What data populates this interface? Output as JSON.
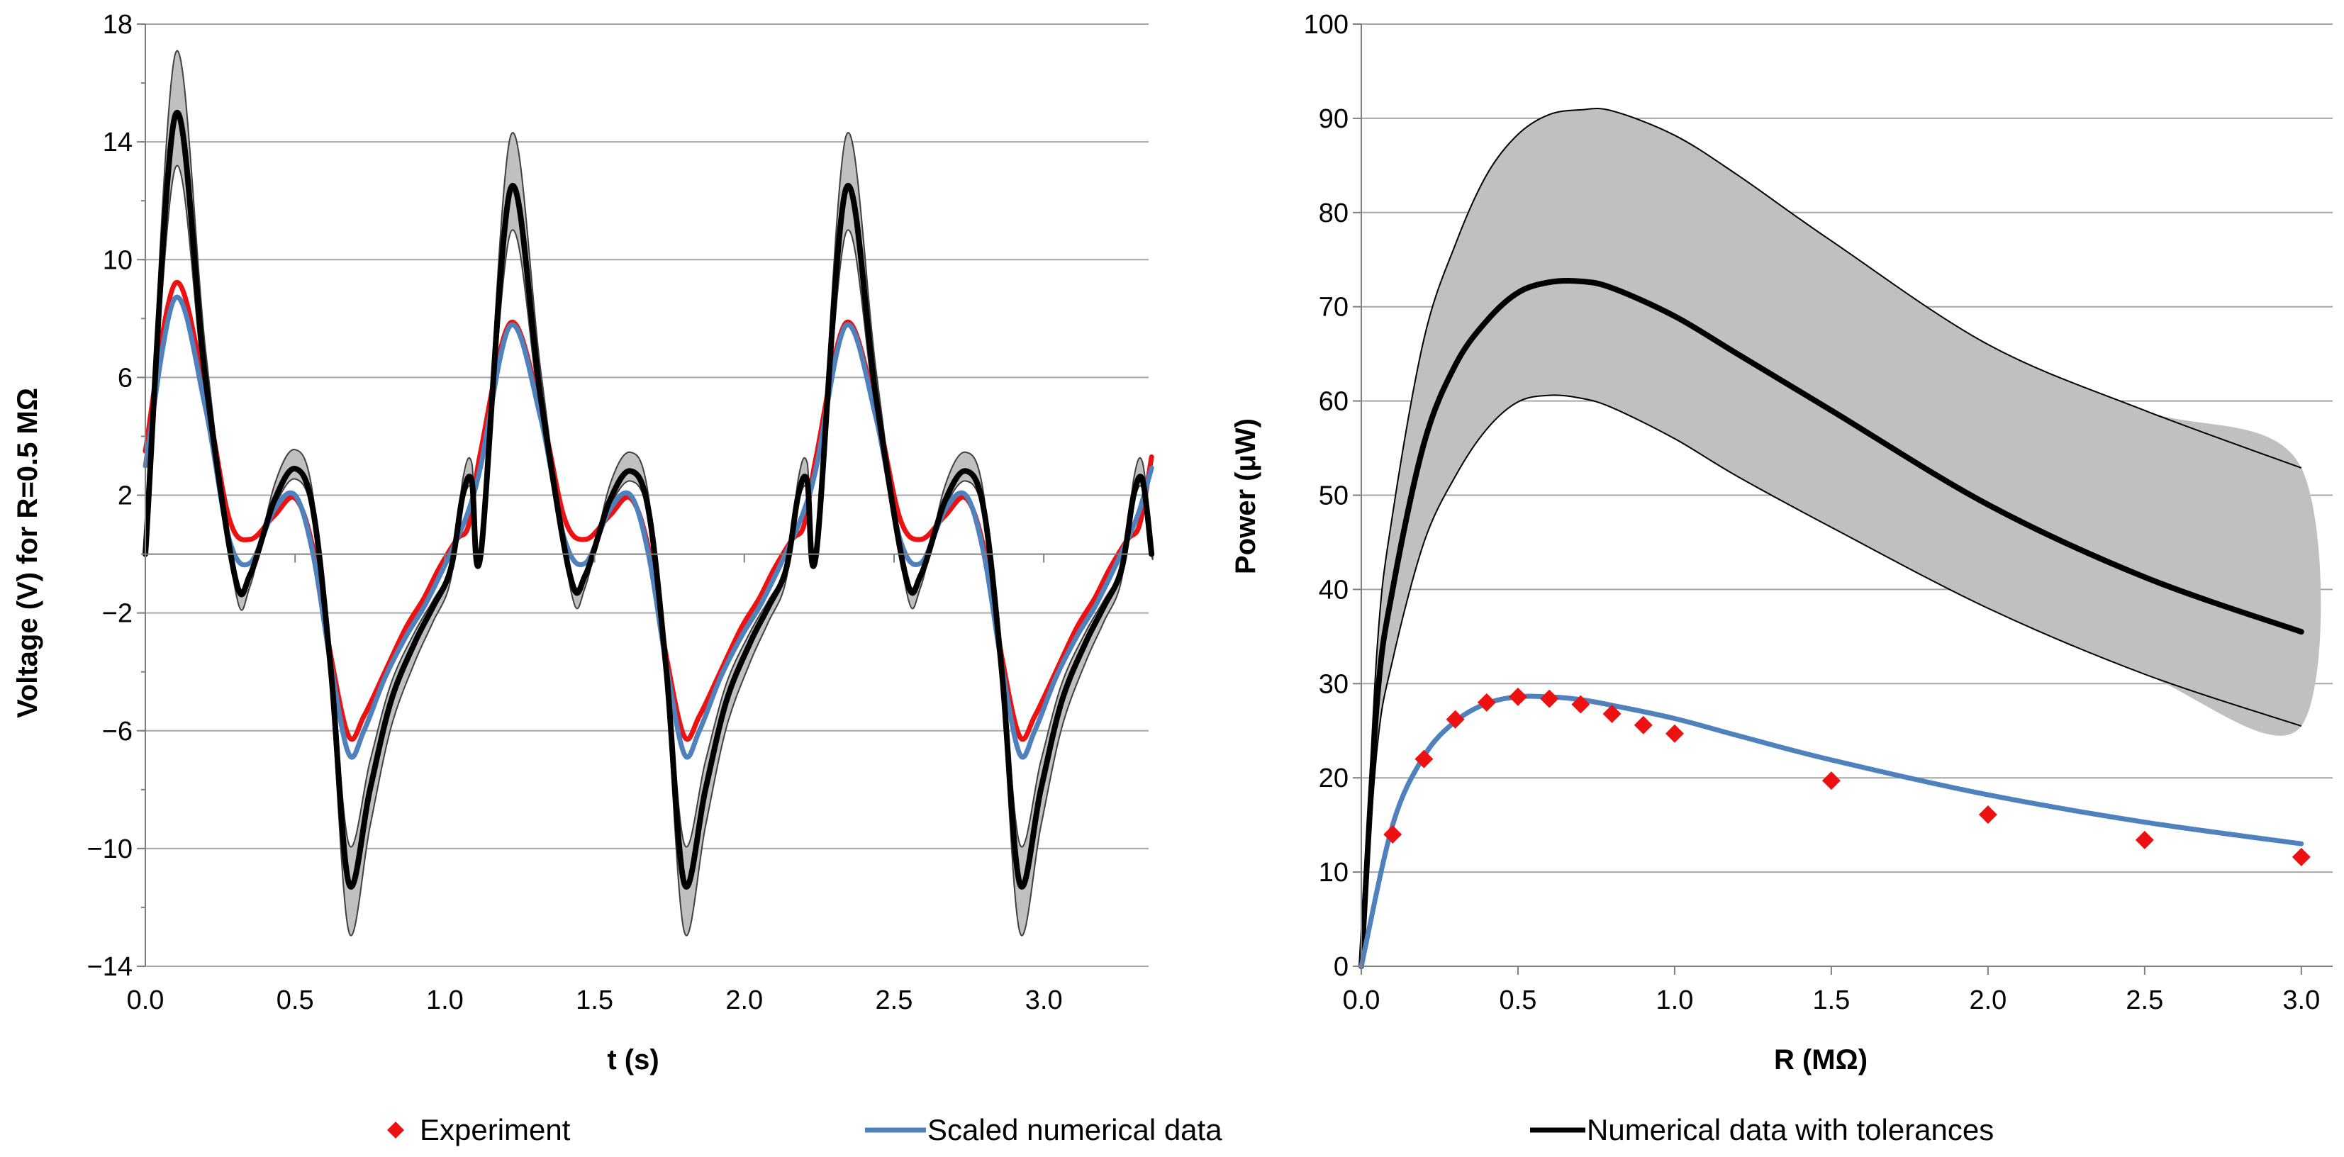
{
  "chart_data": [
    {
      "type": "line",
      "xlabel": "t (s)",
      "ylabel": "Voltage (V) for  R=0.5 MΩ",
      "xlim": [
        0,
        3.35
      ],
      "ylim": [
        -14,
        18
      ],
      "xticks": [
        0.0,
        0.5,
        1.0,
        1.5,
        2.0,
        2.5,
        3.0
      ],
      "xtick_labels": [
        "0.0",
        "0.5",
        "1.0",
        "1.5",
        "2.0",
        "2.5",
        "3.0"
      ],
      "yticks": [
        -14,
        -10,
        -6,
        -2,
        2,
        6,
        10,
        14,
        18
      ],
      "ytick_labels": [
        "−14",
        "−10",
        "−6",
        "−2",
        "2",
        "6",
        "10",
        "14",
        "18"
      ],
      "grid": true,
      "period_s": 1.12,
      "series": [
        {
          "name": "Experiment",
          "style": "line",
          "color": "#ee1111",
          "phase_t": [
            0.0,
            0.1,
            0.2,
            0.28,
            0.35,
            0.43,
            0.5,
            0.56,
            0.62,
            0.68,
            0.73,
            0.8,
            0.87,
            0.93,
            0.98,
            1.04,
            1.08,
            1.12
          ],
          "phase_v": [
            3.5,
            9.2,
            5.5,
            1.2,
            0.5,
            1.3,
            1.9,
            0.2,
            -3.5,
            -6.2,
            -5.5,
            -4.0,
            -2.5,
            -1.5,
            -0.5,
            0.5,
            1.0,
            3.5
          ],
          "peak_scale": [
            1.0,
            0.8,
            0.8
          ]
        },
        {
          "name": "Scaled numerical data",
          "style": "line",
          "color": "#4f81bd",
          "phase_t": [
            0.0,
            0.1,
            0.2,
            0.28,
            0.35,
            0.43,
            0.5,
            0.56,
            0.62,
            0.68,
            0.73,
            0.8,
            0.87,
            0.93,
            0.98,
            1.04,
            1.08,
            1.12
          ],
          "phase_v": [
            3.0,
            8.7,
            5.0,
            0.5,
            -0.3,
            1.5,
            2.0,
            0.0,
            -3.8,
            -6.8,
            -6.0,
            -4.2,
            -2.8,
            -1.8,
            -0.8,
            0.5,
            1.5,
            3.0
          ],
          "peak_scale": [
            1.0,
            0.85,
            0.85
          ]
        },
        {
          "name": "Numerical data with tolerances",
          "style": "line",
          "color": "#000000",
          "band_color": "#c0c0c0",
          "tolerance_fraction": 0.12,
          "phase_t": [
            0.0,
            0.1,
            0.2,
            0.3,
            0.35,
            0.43,
            0.5,
            0.56,
            0.62,
            0.68,
            0.75,
            0.82,
            0.9,
            0.96,
            1.02,
            1.06,
            1.09,
            1.12
          ],
          "phase_v": [
            0.0,
            14.9,
            6.0,
            -0.8,
            -0.7,
            1.8,
            2.9,
            1.5,
            -4.0,
            -11.2,
            -8.0,
            -5.0,
            -3.0,
            -1.8,
            -0.5,
            2.0,
            2.5,
            0.0
          ],
          "peak_scale": [
            1.0,
            0.8,
            0.8
          ]
        }
      ]
    },
    {
      "type": "line",
      "xlabel": "R (MΩ)",
      "ylabel": "Power (μW)",
      "xlim": [
        0,
        3.1
      ],
      "ylim": [
        0,
        100
      ],
      "xticks": [
        0.0,
        0.5,
        1.0,
        1.5,
        2.0,
        2.5,
        3.0
      ],
      "xtick_labels": [
        "0.0",
        "0.5",
        "1.0",
        "1.5",
        "2.0",
        "2.5",
        "3.0"
      ],
      "yticks": [
        0,
        10,
        20,
        30,
        40,
        50,
        60,
        70,
        80,
        90,
        100
      ],
      "ytick_labels": [
        "0",
        "10",
        "20",
        "30",
        "40",
        "50",
        "60",
        "70",
        "80",
        "90",
        "100"
      ],
      "grid": true,
      "series": [
        {
          "name": "Experiment",
          "style": "markers",
          "color": "#ee1111",
          "x": [
            0.1,
            0.2,
            0.3,
            0.4,
            0.5,
            0.6,
            0.7,
            0.8,
            0.9,
            1.0,
            1.5,
            2.0,
            2.5,
            3.0
          ],
          "y": [
            14,
            22,
            26.2,
            28.0,
            28.6,
            28.4,
            27.8,
            26.8,
            25.6,
            24.7,
            19.7,
            16.1,
            13.4,
            11.6
          ]
        },
        {
          "name": "Scaled numerical data",
          "style": "line",
          "color": "#4f81bd",
          "x": [
            0.0,
            0.1,
            0.2,
            0.3,
            0.4,
            0.5,
            0.6,
            0.7,
            0.8,
            1.0,
            1.2,
            1.5,
            2.0,
            2.5,
            3.0
          ],
          "y": [
            0,
            15.0,
            22.3,
            26.0,
            27.9,
            28.6,
            28.6,
            28.3,
            27.7,
            26.3,
            24.5,
            21.9,
            18.2,
            15.3,
            13.0
          ]
        },
        {
          "name": "Numerical data with tolerances",
          "style": "line",
          "color": "#000000",
          "x": [
            0.0,
            0.05,
            0.1,
            0.2,
            0.3,
            0.4,
            0.5,
            0.6,
            0.7,
            0.8,
            1.0,
            1.2,
            1.5,
            2.0,
            2.5,
            3.0
          ],
          "y": [
            0,
            28.0,
            40.0,
            55.5,
            63.8,
            68.5,
            71.5,
            72.6,
            72.7,
            72.0,
            69.0,
            65.0,
            59.0,
            49.0,
            41.3,
            35.5
          ],
          "band_upper": [
            0,
            33.5,
            48.0,
            66.6,
            76.6,
            84.0,
            88.3,
            90.4,
            90.9,
            90.8,
            88.2,
            84.0,
            77.0,
            66.0,
            59.0,
            52.9
          ],
          "band_lower": [
            0,
            23.0,
            32.5,
            45.0,
            52.0,
            57.0,
            59.9,
            60.6,
            60.3,
            59.3,
            56.0,
            52.0,
            46.6,
            38.0,
            31.0,
            25.5
          ],
          "band_color": "#c0c0c0"
        }
      ]
    }
  ],
  "legend": [
    {
      "label": "Experiment",
      "marker": "diamond",
      "color": "#ee1111"
    },
    {
      "label": "Scaled numerical data",
      "marker": "line",
      "color": "#4f81bd"
    },
    {
      "label": "Numerical data with tolerances",
      "marker": "line",
      "color": "#000000"
    }
  ]
}
